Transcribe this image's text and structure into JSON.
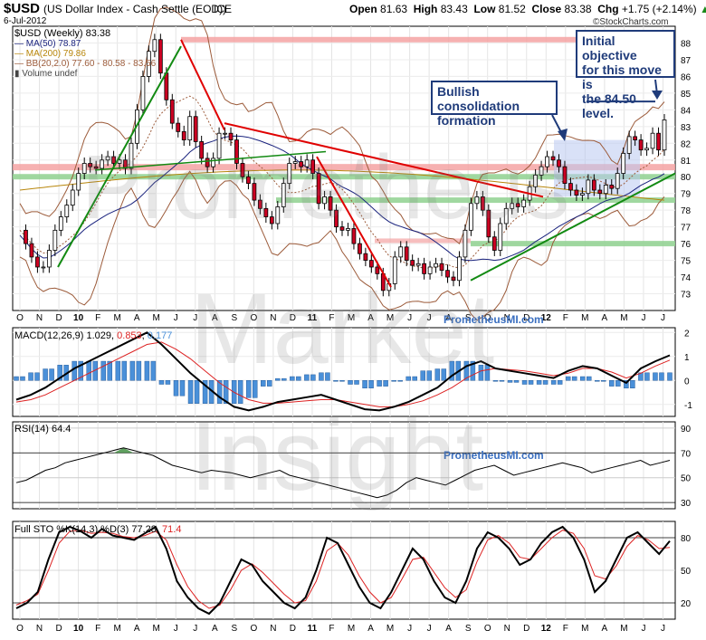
{
  "header": {
    "symbol": "$USD",
    "name": "(US Dollar Index - Cash Settle (EOD))",
    "exchange": "ICE",
    "date": "6-Jul-2012",
    "open_label": "Open",
    "open": "81.63",
    "high_label": "High",
    "high": "83.43",
    "low_label": "Low",
    "low": "81.52",
    "close_label": "Close",
    "close": "83.38",
    "chg_label": "Chg",
    "chg": "+1.75 (+2.14%)",
    "arrow": "▲",
    "source": "©StockCharts.com"
  },
  "watermark": {
    "url": "PrometheusMI.com",
    "big": [
      "Prometheus",
      "Market",
      "Insight"
    ]
  },
  "legend": {
    "main": "$USD (Weekly) 83.38",
    "ma50": "MA(50) 78.87",
    "ma200": "MA(200) 79.86",
    "bb": "BB(20,2.0) 77.60 - 80.58 - 83.56",
    "volume": "Volume undef"
  },
  "annotations": {
    "objective": "Initial objective\nfor this move is\nthe 84.50 level.",
    "consolidation": "Bullish consolidation\nformation"
  },
  "colors": {
    "up_candle": "#ffffff",
    "down_candle": "#cc0022",
    "ma50": "#1a237e",
    "ma200": "#b8860b",
    "bb": "#9c5b3a",
    "trend_red": "#e00000",
    "trend_green": "#128a12",
    "support_red": "#f4a3a3",
    "support_green": "#8fd18f",
    "macd_hist": "#4a90d9",
    "signal": "#dd2222"
  },
  "chart_data": [
    {
      "type": "candlestick",
      "title": "$USD (Weekly)",
      "x_ticks": [
        "O",
        "N",
        "D",
        "10",
        "F",
        "M",
        "A",
        "M",
        "J",
        "J",
        "A",
        "S",
        "O",
        "N",
        "D",
        "11",
        "F",
        "M",
        "A",
        "M",
        "J",
        "J",
        "A",
        "S",
        "O",
        "N",
        "D",
        "12",
        "F",
        "M",
        "A",
        "M",
        "J",
        "J"
      ],
      "ylim": [
        72,
        89
      ],
      "y_ticks": [
        73,
        74,
        75,
        76,
        77,
        78,
        79,
        80,
        81,
        82,
        83,
        84,
        85,
        86,
        87,
        88
      ],
      "close_path": [
        76.8,
        76.0,
        75.2,
        74.6,
        74.6,
        75.6,
        76.8,
        77.6,
        78.3,
        79.2,
        80.2,
        80.8,
        80.6,
        80.5,
        81.0,
        81.2,
        80.8,
        81.0,
        80.5,
        82.0,
        84.0,
        86.0,
        87.5,
        88.2,
        86.2,
        84.6,
        83.2,
        82.7,
        82.2,
        83.6,
        82.1,
        81.1,
        80.6,
        81.1,
        82.6,
        82.6,
        82.2,
        80.8,
        80.0,
        79.6,
        78.6,
        78.1,
        77.6,
        77.2,
        78.2,
        79.6,
        80.8,
        80.9,
        80.6,
        81.0,
        80.2,
        78.4,
        78.8,
        78.0,
        77.0,
        76.8,
        76.9,
        76.0,
        75.4,
        75.0,
        74.6,
        74.2,
        73.2,
        73.6,
        75.2,
        75.8,
        75.0,
        74.7,
        74.8,
        74.2,
        74.6,
        74.8,
        74.4,
        74.0,
        73.8,
        75.2,
        76.8,
        78.4,
        78.8,
        78.0,
        76.4,
        75.6,
        77.2,
        78.1,
        78.4,
        78.2,
        78.6,
        79.4,
        80.1,
        80.6,
        81.2,
        81.0,
        80.6,
        79.6,
        79.2,
        78.9,
        79.0,
        79.8,
        79.2,
        79.0,
        79.5,
        79.3,
        80.2,
        81.4,
        82.4,
        82.2,
        81.6,
        81.7,
        82.6,
        81.6,
        83.4
      ],
      "support_levels": [
        88.2,
        80.6,
        80.0,
        78.6,
        76.0
      ],
      "resistance_target": 84.5,
      "series": [
        {
          "name": "$USD (Weekly)",
          "last": 83.38
        },
        {
          "name": "MA(50)",
          "last": 78.87
        },
        {
          "name": "MA(200)",
          "last": 79.86
        },
        {
          "name": "BB(20,2.0)",
          "lower": 77.6,
          "middle": 80.58,
          "upper": 83.56
        }
      ]
    },
    {
      "type": "line",
      "title": "MACD(12,26,9)",
      "series": [
        {
          "name": "MACD",
          "last": 1.029
        },
        {
          "name": "Signal",
          "last": 0.853
        },
        {
          "name": "Histogram",
          "last": 0.177
        }
      ],
      "ylim": [
        -1.5,
        2.2
      ],
      "y_ticks": [
        -1,
        0,
        1,
        2
      ],
      "macd_path": [
        -0.8,
        -0.6,
        -0.3,
        0.1,
        0.5,
        0.8,
        1.1,
        1.4,
        1.7,
        2.0,
        1.5,
        0.9,
        0.3,
        -0.2,
        -0.7,
        -1.1,
        -1.25,
        -1.1,
        -0.9,
        -0.8,
        -0.7,
        -0.6,
        -0.8,
        -1.0,
        -1.2,
        -1.25,
        -1.1,
        -0.9,
        -0.6,
        -0.3,
        0.2,
        0.6,
        0.8,
        0.5,
        0.4,
        0.3,
        0.2,
        0.1,
        0.4,
        0.6,
        0.5,
        0.2,
        -0.1,
        0.5,
        0.8,
        1.05
      ],
      "signal_path": [
        -0.9,
        -0.8,
        -0.6,
        -0.3,
        0.0,
        0.3,
        0.6,
        0.9,
        1.2,
        1.5,
        1.6,
        1.3,
        0.9,
        0.4,
        -0.1,
        -0.5,
        -0.8,
        -0.95,
        -0.95,
        -0.9,
        -0.85,
        -0.8,
        -0.8,
        -0.9,
        -1.0,
        -1.1,
        -1.1,
        -1.0,
        -0.85,
        -0.6,
        -0.3,
        0.1,
        0.4,
        0.5,
        0.45,
        0.4,
        0.3,
        0.2,
        0.3,
        0.5,
        0.5,
        0.35,
        0.1,
        0.3,
        0.6,
        0.85
      ]
    },
    {
      "type": "line",
      "title": "RSI(14)",
      "series": [
        {
          "name": "RSI(14)",
          "last": 64.4
        }
      ],
      "ylim": [
        25,
        95
      ],
      "y_ticks": [
        30,
        50,
        70,
        90
      ],
      "rsi_path": [
        46,
        48,
        52,
        56,
        58,
        62,
        64,
        66,
        68,
        70,
        72,
        74,
        72,
        70,
        68,
        64,
        60,
        58,
        56,
        54,
        56,
        55,
        54,
        52,
        50,
        52,
        54,
        56,
        52,
        50,
        48,
        46,
        44,
        42,
        40,
        38,
        36,
        34,
        36,
        40,
        46,
        50,
        48,
        46,
        44,
        48,
        52,
        56,
        58,
        60,
        56,
        52,
        54,
        56,
        58,
        60,
        62,
        60,
        58,
        54,
        56,
        58,
        60,
        62,
        64,
        60,
        62,
        64
      ]
    },
    {
      "type": "line",
      "title": "Full STO %K(14,3) %D(3)",
      "series": [
        {
          "name": "%K(14,3)",
          "last": 77.28
        },
        {
          "name": "%D(3)",
          "last": 71.4
        }
      ],
      "ylim": [
        5,
        95
      ],
      "y_ticks": [
        20,
        50,
        80
      ],
      "k_path": [
        15,
        20,
        30,
        60,
        85,
        90,
        86,
        80,
        88,
        82,
        80,
        78,
        84,
        90,
        70,
        40,
        25,
        15,
        10,
        20,
        40,
        60,
        55,
        40,
        30,
        20,
        15,
        25,
        50,
        80,
        75,
        55,
        35,
        20,
        15,
        30,
        50,
        70,
        60,
        40,
        25,
        20,
        40,
        70,
        85,
        80,
        70,
        55,
        60,
        75,
        85,
        90,
        80,
        60,
        30,
        40,
        60,
        80,
        85,
        75,
        65,
        77
      ],
      "d_path": [
        18,
        22,
        28,
        50,
        75,
        86,
        87,
        84,
        85,
        84,
        81,
        80,
        82,
        86,
        78,
        55,
        35,
        22,
        15,
        18,
        32,
        50,
        56,
        48,
        38,
        28,
        20,
        22,
        40,
        68,
        75,
        64,
        45,
        30,
        20,
        25,
        42,
        60,
        62,
        48,
        34,
        25,
        32,
        58,
        78,
        82,
        75,
        62,
        60,
        70,
        80,
        87,
        84,
        70,
        45,
        42,
        54,
        72,
        82,
        78,
        70,
        71
      ]
    }
  ]
}
